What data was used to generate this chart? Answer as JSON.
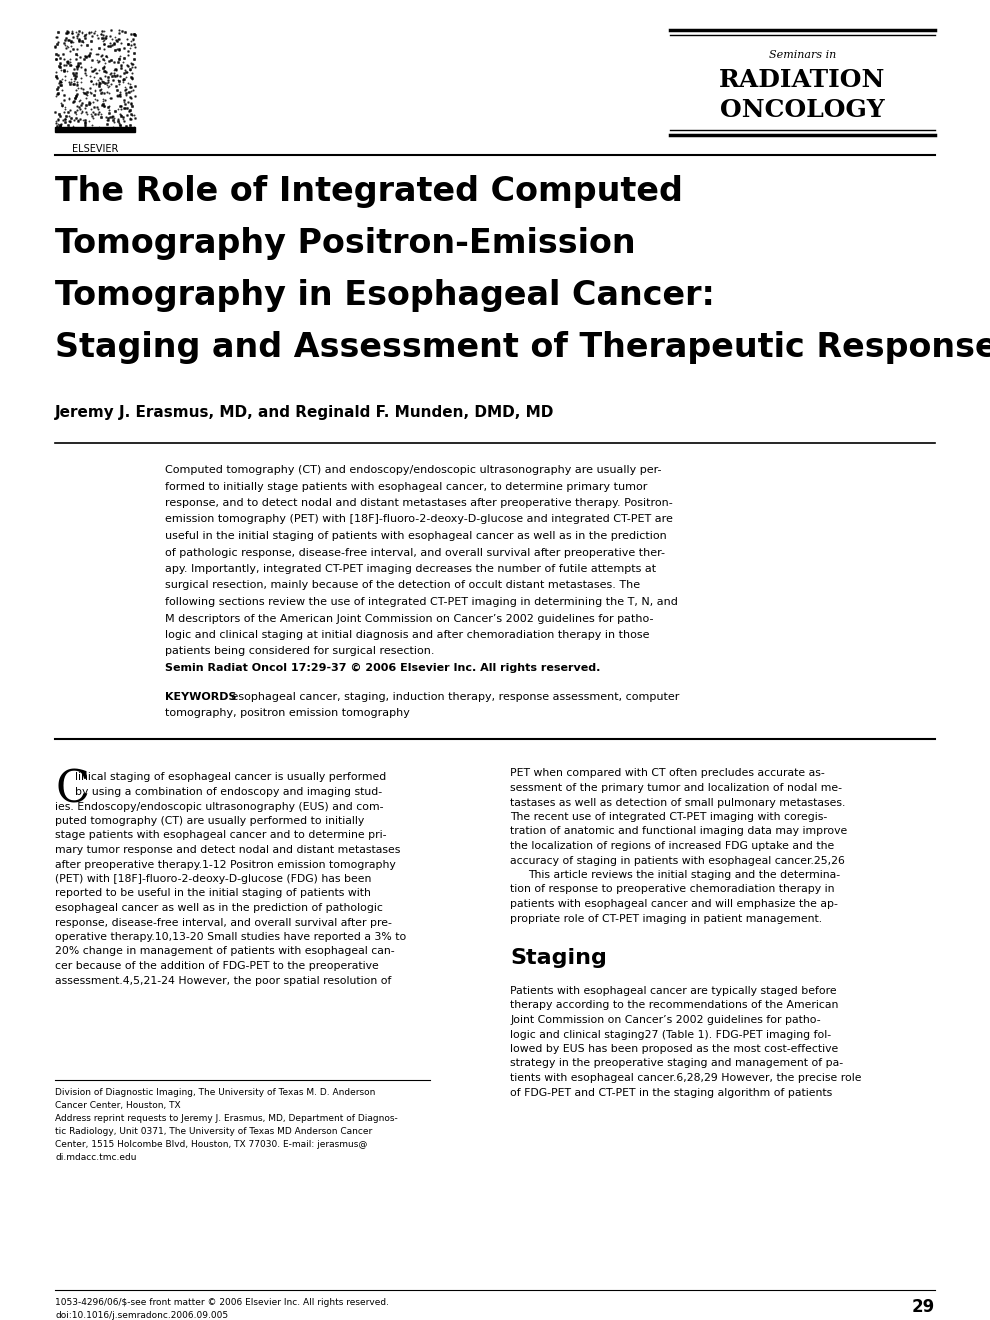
{
  "background_color": "#ffffff",
  "page_width": 9.9,
  "page_height": 13.2,
  "header": {
    "elsevier_text": "ELSEVIER",
    "journal_seminars_in": "Seminars in",
    "journal_line1": "RADIATION",
    "journal_line2": "ONCOLOGY"
  },
  "title_lines": [
    "The Role of Integrated Computed",
    "Tomography Positron-Emission",
    "Tomography in Esophageal Cancer:",
    "Staging and Assessment of Therapeutic Response"
  ],
  "authors": "Jeremy J. Erasmus, MD, and Reginald F. Munden, DMD, MD",
  "abstract_lines": [
    "Computed tomography (CT) and endoscopy/endoscopic ultrasonography are usually per-",
    "formed to initially stage patients with esophageal cancer, to determine primary tumor",
    "response, and to detect nodal and distant metastases after preoperative therapy. Positron-",
    "emission tomography (PET) with [18F]-fluoro-2-deoxy-D-glucose and integrated CT-PET are",
    "useful in the initial staging of patients with esophageal cancer as well as in the prediction",
    "of pathologic response, disease-free interval, and overall survival after preoperative ther-",
    "apy. Importantly, integrated CT-PET imaging decreases the number of futile attempts at",
    "surgical resection, mainly because of the detection of occult distant metastases. The",
    "following sections review the use of integrated CT-PET imaging in determining the T, N, and",
    "M descriptors of the American Joint Commission on Cancer’s 2002 guidelines for patho-",
    "logic and clinical staging at initial diagnosis and after chemoradiation therapy in those",
    "patients being considered for surgical resection.",
    "Semin Radiat Oncol 17:29-37 © 2006 Elsevier Inc. All rights reserved."
  ],
  "keywords_label": "KEYWORDS",
  "keywords_lines": [
    " esophageal cancer, staging, induction therapy, response assessment, computer",
    "tomography, positron emission tomography"
  ],
  "col1_lines": [
    "linical staging of esophageal cancer is usually performed",
    "by using a combination of endoscopy and imaging stud-",
    "ies. Endoscopy/endoscopic ultrasonography (EUS) and com-",
    "puted tomography (CT) are usually performed to initially",
    "stage patients with esophageal cancer and to determine pri-",
    "mary tumor response and detect nodal and distant metastases",
    "after preoperative therapy.1-12 Positron emission tomography",
    "(PET) with [18F]-fluoro-2-deoxy-D-glucose (FDG) has been",
    "reported to be useful in the initial staging of patients with",
    "esophageal cancer as well as in the prediction of pathologic",
    "response, disease-free interval, and overall survival after pre-",
    "operative therapy.10,13-20 Small studies have reported a 3% to",
    "20% change in management of patients with esophageal can-",
    "cer because of the addition of FDG-PET to the preoperative",
    "assessment.4,5,21-24 However, the poor spatial resolution of"
  ],
  "col2_lines": [
    "PET when compared with CT often precludes accurate as-",
    "sessment of the primary tumor and localization of nodal me-",
    "tastases as well as detection of small pulmonary metastases.",
    "The recent use of integrated CT-PET imaging with coregis-",
    "tration of anatomic and functional imaging data may improve",
    "the localization of regions of increased FDG uptake and the",
    "accuracy of staging in patients with esophageal cancer.25,26",
    "    This article reviews the initial staging and the determina-",
    "tion of response to preoperative chemoradiation therapy in",
    "patients with esophageal cancer and will emphasize the ap-",
    "propriate role of CT-PET imaging in patient management."
  ],
  "staging_heading": "Staging",
  "staging_lines": [
    "Patients with esophageal cancer are typically staged before",
    "therapy according to the recommendations of the American",
    "Joint Commission on Cancer’s 2002 guidelines for patho-",
    "logic and clinical staging27 (Table 1). FDG-PET imaging fol-",
    "lowed by EUS has been proposed as the most cost-effective",
    "strategy in the preoperative staging and management of pa-",
    "tients with esophageal cancer.6,28,29 However, the precise role",
    "of FDG-PET and CT-PET in the staging algorithm of patients"
  ],
  "footnote_lines": [
    "Division of Diagnostic Imaging, The University of Texas M. D. Anderson",
    "    Cancer Center, Houston, TX",
    "Address reprint requests to Jeremy J. Erasmus, MD, Department of Diagnos-",
    "tic Radiology, Unit 0371, The University of Texas MD Anderson Cancer",
    "Center, 1515 Holcombe Blvd, Houston, TX 77030. E-mail: jerasmus@",
    "di.mdacc.tmc.edu"
  ],
  "bottom_left_lines": [
    "1053-4296/06/$-see front matter © 2006 Elsevier Inc. All rights reserved.",
    "doi:10.1016/j.semradonc.2006.09.005"
  ],
  "bottom_right": "29"
}
